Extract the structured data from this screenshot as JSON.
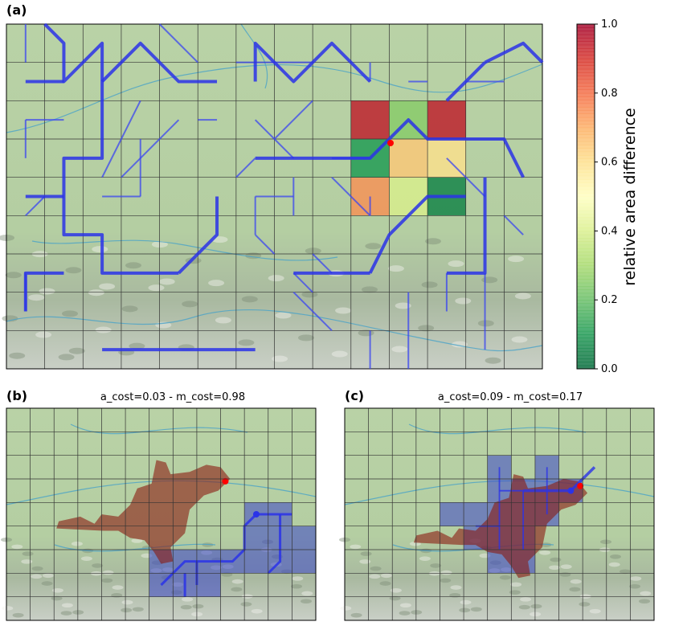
{
  "chart_data": {
    "type": "heatmap",
    "label": "(a)",
    "colormap": "RdYlGn_r",
    "values": [
      [
        0.95,
        0.25,
        0.95
      ],
      [
        0.1,
        0.65,
        0.6
      ],
      [
        0.75,
        0.4,
        0.05
      ]
    ],
    "colorbar": {
      "label": "relative area difference",
      "lim": [
        0,
        1
      ],
      "ticks": [
        {
          "value": 0,
          "label": "0.0"
        },
        {
          "value": 0.2,
          "label": "0.2"
        },
        {
          "value": 0.4,
          "label": "0.4"
        },
        {
          "value": 0.6,
          "label": "0.6"
        },
        {
          "value": 0.8,
          "label": "0.8"
        },
        {
          "value": 1,
          "label": "1.0"
        }
      ]
    }
  },
  "panels": [
    {
      "label": "(b)",
      "title": "a_cost=0.03 - m_cost=0.98"
    },
    {
      "label": "(c)",
      "title": "a_cost=0.09 - m_cost=0.17"
    }
  ]
}
